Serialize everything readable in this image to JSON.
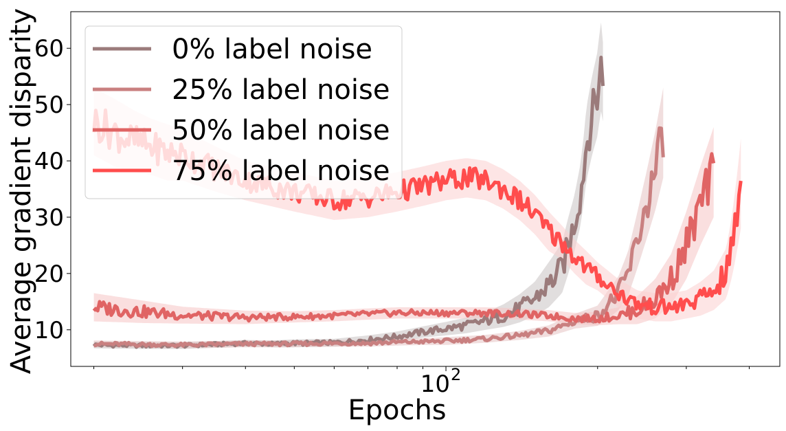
{
  "chart_data": {
    "type": "line",
    "xlabel": "Epochs",
    "ylabel": "Average gradient disparity",
    "xscale": "log",
    "xlim": [
      18,
      460
    ],
    "ylim": [
      3.5,
      66.5
    ],
    "x_tick_label": "10",
    "x_tick_exponent": "2",
    "x_tick_value": 100,
    "y_ticks": [
      10,
      20,
      30,
      40,
      50,
      60
    ],
    "grid": false,
    "legend_position": "top-left",
    "series": [
      {
        "name": "0% label noise",
        "color": "#9b7b7b",
        "band_color": "#c8c3c3",
        "x": [
          20,
          25,
          30,
          35,
          40,
          45,
          50,
          60,
          70,
          80,
          90,
          100,
          110,
          120,
          130,
          140,
          150,
          160,
          170,
          175,
          180,
          185,
          188,
          190,
          195,
          200,
          203,
          205
        ],
        "y": [
          7.3,
          7.2,
          7.2,
          7.4,
          7.6,
          7.5,
          7.6,
          7.7,
          8.2,
          8.8,
          9.6,
          10.2,
          10.8,
          11.6,
          12.5,
          13.8,
          15.5,
          18.0,
          21.0,
          25.0,
          29.0,
          34.0,
          39.0,
          43.0,
          48.0,
          52.0,
          57.0,
          54.0
        ],
        "band": [
          0.6,
          0.6,
          0.6,
          0.6,
          0.6,
          0.6,
          0.7,
          0.7,
          0.8,
          0.9,
          1.0,
          1.2,
          1.4,
          1.6,
          2.0,
          2.5,
          3.0,
          4.0,
          4.5,
          5.0,
          5.0,
          5.5,
          6.0,
          6.5,
          7.0,
          7.5,
          8.0,
          7.0
        ]
      },
      {
        "name": "25% label noise",
        "color": "#c98080",
        "band_color": "#e6c2c2",
        "x": [
          20,
          25,
          30,
          40,
          50,
          60,
          70,
          80,
          90,
          100,
          120,
          140,
          160,
          180,
          200,
          210,
          220,
          230,
          240,
          250,
          260,
          270
        ],
        "y": [
          7.5,
          7.4,
          7.3,
          7.5,
          7.5,
          7.6,
          7.6,
          7.8,
          7.9,
          8.0,
          8.4,
          9.0,
          9.8,
          11.5,
          12.5,
          14.5,
          16.5,
          20.0,
          26.0,
          32.0,
          38.0,
          45.0
        ],
        "band": [
          0.6,
          0.6,
          0.6,
          0.6,
          0.6,
          0.6,
          0.6,
          0.6,
          0.6,
          0.7,
          0.7,
          0.8,
          1.0,
          1.3,
          1.8,
          2.5,
          3.0,
          4.0,
          5.0,
          6.0,
          7.0,
          8.0
        ]
      },
      {
        "name": "50% label noise",
        "color": "#e06464",
        "band_color": "#f5c4c4",
        "x": [
          20,
          25,
          30,
          40,
          50,
          60,
          70,
          80,
          90,
          100,
          120,
          140,
          160,
          180,
          200,
          220,
          240,
          260,
          280,
          300,
          320,
          340
        ],
        "y": [
          14.0,
          13.2,
          12.6,
          12.2,
          12.3,
          12.5,
          12.8,
          13.0,
          13.0,
          13.0,
          13.0,
          12.8,
          12.5,
          12.0,
          12.0,
          12.5,
          13.5,
          15.5,
          19.0,
          25.0,
          32.0,
          38.0
        ],
        "band": [
          2.5,
          2.0,
          1.5,
          1.2,
          1.0,
          1.0,
          1.0,
          1.0,
          1.0,
          1.0,
          1.0,
          1.0,
          1.0,
          1.0,
          1.2,
          1.5,
          2.5,
          3.5,
          4.5,
          6.0,
          7.0,
          8.0
        ]
      },
      {
        "name": "75% label noise",
        "color": "#ff4d4d",
        "band_color": "#fbd0d0",
        "x": [
          20,
          22,
          24,
          26,
          28,
          30,
          35,
          40,
          50,
          60,
          70,
          80,
          90,
          100,
          110,
          120,
          130,
          140,
          150,
          160,
          170,
          180,
          190,
          200,
          220,
          240,
          260,
          280,
          300,
          320,
          340,
          360,
          370,
          380,
          385
        ],
        "y": [
          47.0,
          45.0,
          43.5,
          42.5,
          41.5,
          41.0,
          38.5,
          36.5,
          34.5,
          33.0,
          33.5,
          34.5,
          35.5,
          36.5,
          37.0,
          36.5,
          35.0,
          33.0,
          30.5,
          27.5,
          25.5,
          23.0,
          21.0,
          19.5,
          16.5,
          14.5,
          14.0,
          14.0,
          14.5,
          15.5,
          17.0,
          20.0,
          25.0,
          32.0,
          36.0
        ],
        "band": [
          6.0,
          6.0,
          5.5,
          5.0,
          5.0,
          4.5,
          4.0,
          3.5,
          3.5,
          3.5,
          3.5,
          3.5,
          3.5,
          3.5,
          3.5,
          3.5,
          3.5,
          3.5,
          3.5,
          3.5,
          3.0,
          3.0,
          3.0,
          2.5,
          2.5,
          2.5,
          2.5,
          2.5,
          2.5,
          3.0,
          3.5,
          4.5,
          5.5,
          7.0,
          8.0
        ]
      }
    ]
  }
}
